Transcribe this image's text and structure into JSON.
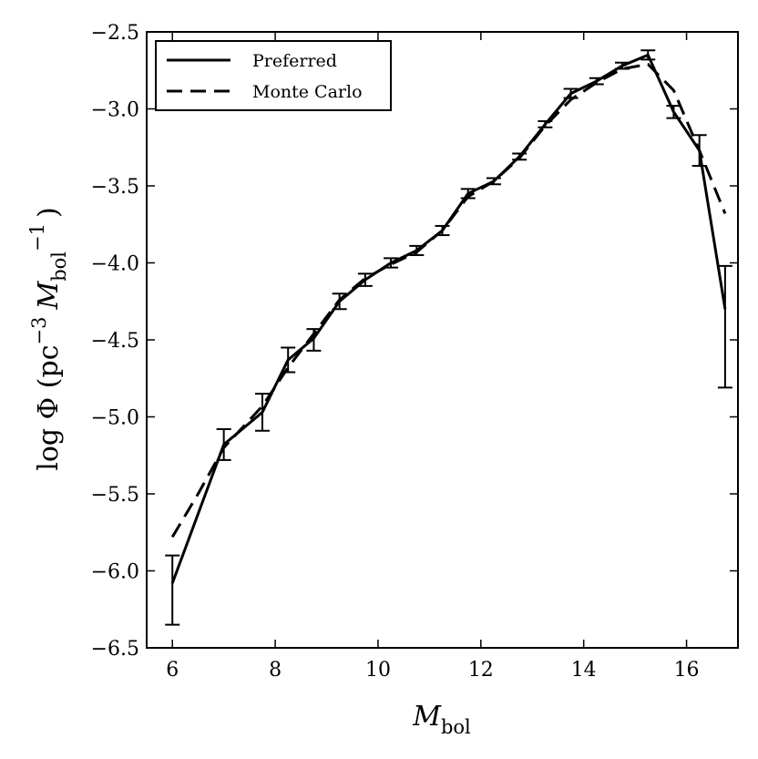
{
  "chart_data": {
    "type": "line",
    "xlabel": {
      "main": "M",
      "sub": "bol"
    },
    "ylabel": {
      "prefix": "log Φ (pc",
      "sup1": "−3",
      "mid": "M",
      "sub": "bol",
      "sup2": "−1",
      "suffix": ")"
    },
    "xlim": [
      5.5,
      17.0
    ],
    "ylim": [
      -6.5,
      -2.5
    ],
    "xticks": [
      6,
      8,
      10,
      12,
      14,
      16
    ],
    "yticks": [
      -2.5,
      -3.0,
      -3.5,
      -4.0,
      -4.5,
      -5.0,
      -5.5,
      -6.0,
      -6.5
    ],
    "xtick_labels": [
      "6",
      "8",
      "10",
      "12",
      "14",
      "16"
    ],
    "ytick_labels": [
      "−2.5",
      "−3.0",
      "−3.5",
      "−4.0",
      "−4.5",
      "−5.0",
      "−5.5",
      "−6.0",
      "−6.5"
    ],
    "grid": false,
    "legend_position": "top-left",
    "series": [
      {
        "name": "Preferred",
        "style": "solid",
        "color": "#000000",
        "x": [
          6.0,
          7.0,
          7.75,
          8.25,
          8.75,
          9.25,
          9.75,
          10.25,
          10.75,
          11.25,
          11.75,
          12.25,
          12.75,
          13.25,
          13.75,
          14.25,
          14.75,
          15.25,
          15.75,
          16.25,
          16.75
        ],
        "y": [
          -6.08,
          -5.18,
          -4.97,
          -4.63,
          -4.49,
          -4.25,
          -4.11,
          -4.0,
          -3.92,
          -3.79,
          -3.55,
          -3.47,
          -3.31,
          -3.1,
          -2.9,
          -2.82,
          -2.72,
          -2.65,
          -3.02,
          -3.27,
          -4.3
        ],
        "err_lo": [
          0.27,
          0.1,
          0.12,
          0.08,
          0.08,
          0.05,
          0.04,
          0.03,
          0.03,
          0.03,
          0.03,
          0.02,
          0.02,
          0.02,
          0.03,
          0.02,
          0.02,
          0.03,
          0.04,
          0.1,
          0.51
        ],
        "err_hi": [
          0.18,
          0.1,
          0.12,
          0.08,
          0.06,
          0.05,
          0.04,
          0.03,
          0.03,
          0.03,
          0.03,
          0.02,
          0.02,
          0.02,
          0.03,
          0.02,
          0.02,
          0.03,
          0.04,
          0.1,
          0.28
        ]
      },
      {
        "name": "Monte Carlo",
        "style": "dashed",
        "color": "#000000",
        "x": [
          6.0,
          6.5,
          7.0,
          7.75,
          8.25,
          8.75,
          9.25,
          9.75,
          10.25,
          10.75,
          11.25,
          11.75,
          12.25,
          12.75,
          13.25,
          13.75,
          14.25,
          14.75,
          15.25,
          15.75,
          16.25,
          16.75
        ],
        "y": [
          -5.78,
          -5.5,
          -5.2,
          -4.93,
          -4.68,
          -4.46,
          -4.24,
          -4.1,
          -4.01,
          -3.93,
          -3.79,
          -3.57,
          -3.47,
          -3.32,
          -3.11,
          -2.94,
          -2.83,
          -2.74,
          -2.71,
          -2.88,
          -3.27,
          -3.68
        ]
      }
    ]
  }
}
